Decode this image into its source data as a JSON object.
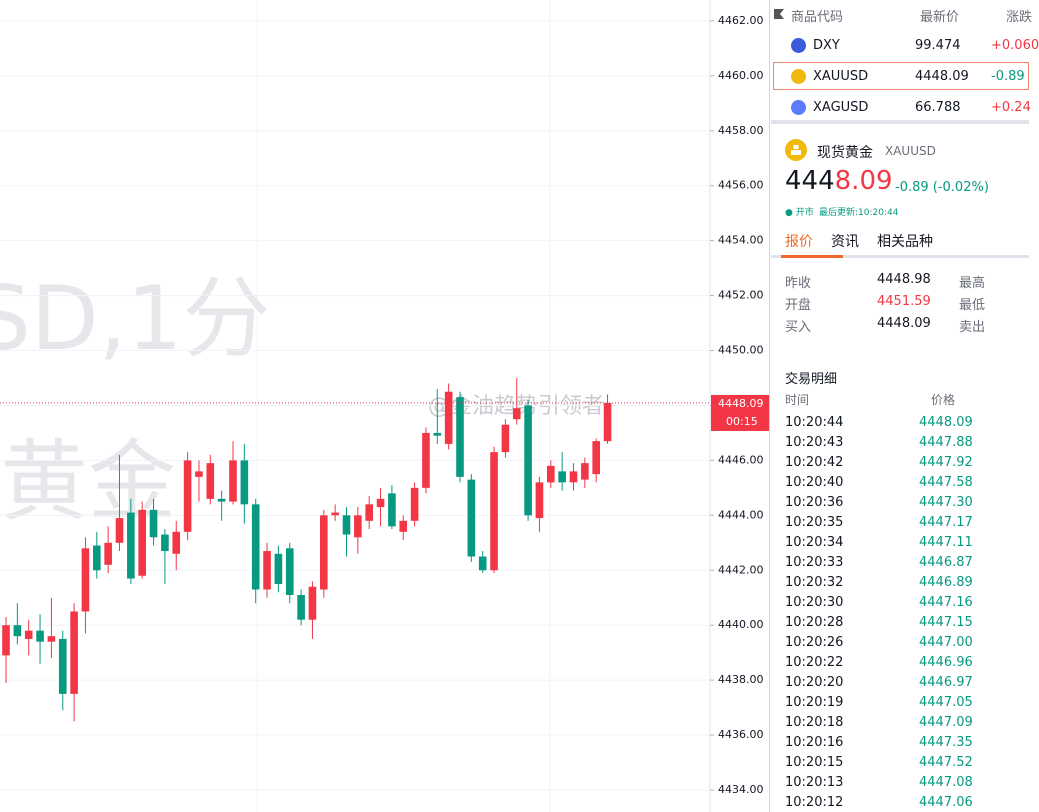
{
  "chart_data": {
    "type": "candlestick",
    "watermark": [
      "SD,1分",
      "黄金"
    ],
    "credit": "@金油趋势引领者",
    "countdown": "00:15",
    "ylim": [
      4433.2,
      4462.76
    ],
    "yticks": [
      {
        "value": 4434,
        "label": "4434.00"
      },
      {
        "value": 4436,
        "label": "4436.00"
      },
      {
        "value": 4438,
        "label": "4438.00"
      },
      {
        "value": 4440,
        "label": "4440.00"
      },
      {
        "value": 4442,
        "label": "4442.00"
      },
      {
        "value": 4444,
        "label": "4444.00"
      },
      {
        "value": 4446,
        "label": "4446.00"
      },
      {
        "value": 4448,
        "label": "4448.00"
      },
      {
        "value": 4450,
        "label": "4450.00"
      },
      {
        "value": 4452,
        "label": "4452.00"
      },
      {
        "value": 4454,
        "label": "4454.00"
      },
      {
        "value": 4456,
        "label": "4456.00"
      },
      {
        "value": 4458,
        "label": "4458.00"
      },
      {
        "value": 4460,
        "label": "4460.00"
      },
      {
        "value": 4462,
        "label": "4462.00"
      }
    ],
    "up_color": "#f23645",
    "down_color": "#089981",
    "series": {
      "open": [
        4438.9,
        4440.0,
        4439.5,
        4439.8,
        4439.4,
        4439.5,
        4437.5,
        4440.5,
        4442.9,
        4442.2,
        4443.0,
        4444.1,
        4441.8,
        4444.2,
        4443.3,
        4442.6,
        4443.4,
        4445.4,
        4444.6,
        4444.6,
        4444.5,
        4446.0,
        4444.4,
        4441.3,
        4442.6,
        4442.8,
        4441.1,
        4440.2,
        4441.3,
        4444.0,
        4444.0,
        4443.2,
        4443.8,
        4444.3,
        4444.8,
        4443.4,
        4443.8,
        4445.0,
        4447.0,
        4446.6,
        4448.3,
        4445.3,
        4442.5,
        4442.0,
        4446.3,
        4447.5,
        4448.0,
        4443.9,
        4445.2,
        4445.6,
        4445.2,
        4445.3,
        4445.5,
        4446.7
      ],
      "high": [
        4440.3,
        4440.8,
        4440.2,
        4440.4,
        4441.0,
        4439.8,
        4440.8,
        4443.2,
        4443.4,
        4443.6,
        4446.2,
        4444.6,
        4444.5,
        4444.6,
        4443.5,
        4443.8,
        4446.3,
        4446.0,
        4446.2,
        4444.9,
        4446.7,
        4446.6,
        4444.6,
        4443.0,
        4442.9,
        4443.0,
        4441.3,
        4441.6,
        4444.2,
        4444.4,
        4444.3,
        4444.3,
        4444.7,
        4445.0,
        4445.1,
        4444.0,
        4445.2,
        4447.2,
        4448.6,
        4448.8,
        4448.5,
        4445.5,
        4442.7,
        4446.5,
        4447.5,
        4449.0,
        4448.2,
        4445.4,
        4446.0,
        4446.3,
        4445.9,
        4446.1,
        4446.8,
        4448.4
      ],
      "low": [
        4437.9,
        4439.3,
        4438.9,
        4438.6,
        4438.8,
        4436.9,
        4436.5,
        4439.7,
        4441.7,
        4441.9,
        4442.7,
        4441.5,
        4441.7,
        4442.9,
        4441.5,
        4442.0,
        4443.1,
        4444.5,
        4444.4,
        4443.8,
        4444.4,
        4443.7,
        4440.8,
        4441.0,
        4441.2,
        4440.8,
        4440.0,
        4439.5,
        4441.0,
        4443.8,
        4442.5,
        4442.6,
        4443.5,
        4443.6,
        4443.5,
        4443.1,
        4443.6,
        4444.8,
        4446.6,
        4446.4,
        4445.2,
        4442.3,
        4441.9,
        4441.9,
        4446.1,
        4447.3,
        4443.8,
        4443.4,
        4445.0,
        4444.9,
        4444.9,
        4445.0,
        4445.2,
        4446.6
      ],
      "close": [
        4440.0,
        4439.6,
        4439.8,
        4439.4,
        4439.6,
        4437.5,
        4440.5,
        4442.8,
        4442.0,
        4443.0,
        4443.9,
        4441.7,
        4444.2,
        4443.2,
        4442.7,
        4443.4,
        4446.0,
        4445.6,
        4445.9,
        4444.5,
        4446.0,
        4444.4,
        4441.3,
        4442.7,
        4441.5,
        4441.1,
        4440.2,
        4441.4,
        4444.0,
        4444.1,
        4443.3,
        4444.0,
        4444.4,
        4444.6,
        4443.6,
        4443.8,
        4445.0,
        4447.0,
        4446.9,
        4448.5,
        4445.4,
        4442.5,
        4442.0,
        4446.3,
        4447.3,
        4447.9,
        4444.0,
        4445.2,
        4445.8,
        4445.2,
        4445.6,
        4445.9,
        4446.7,
        4448.09
      ]
    }
  },
  "watchlist": {
    "header": [
      "商品代码",
      "最新价",
      "涨跌"
    ],
    "rows": [
      [
        "DXY",
        "99.474",
        "+0.060"
      ],
      [
        "XAUUSD",
        "4448.09",
        "-0.89"
      ],
      [
        "XAGUSD",
        "66.788",
        "+0.24"
      ]
    ]
  },
  "detail": {
    "name": "现货黄金",
    "symbol": "XAUUSD",
    "price_main": "444",
    "price_tick": "8.09",
    "change": "-0.89 (-0.02%)",
    "status": "● 开市",
    "updated": "最后更新:10:20:44",
    "tabs": [
      "报价",
      "资讯",
      "相关品种"
    ],
    "stats": [
      [
        "昨收",
        "4448.98",
        "最高"
      ],
      [
        "开盘",
        "4451.59",
        "最低"
      ],
      [
        "买入",
        "4448.09",
        "卖出"
      ]
    ]
  },
  "trades": {
    "title": "交易明细",
    "header": [
      "时间",
      "价格"
    ],
    "rows": [
      [
        "10:20:44",
        "4448.09"
      ],
      [
        "10:20:43",
        "4447.88"
      ],
      [
        "10:20:42",
        "4447.92"
      ],
      [
        "10:20:40",
        "4447.58"
      ],
      [
        "10:20:36",
        "4447.30"
      ],
      [
        "10:20:35",
        "4447.17"
      ],
      [
        "10:20:34",
        "4447.11"
      ],
      [
        "10:20:33",
        "4446.87"
      ],
      [
        "10:20:32",
        "4446.89"
      ],
      [
        "10:20:30",
        "4447.16"
      ],
      [
        "10:20:28",
        "4447.15"
      ],
      [
        "10:20:26",
        "4447.00"
      ],
      [
        "10:20:22",
        "4446.96"
      ],
      [
        "10:20:20",
        "4446.97"
      ],
      [
        "10:20:19",
        "4447.05"
      ],
      [
        "10:20:18",
        "4447.09"
      ],
      [
        "10:20:16",
        "4447.35"
      ],
      [
        "10:20:15",
        "4447.52"
      ],
      [
        "10:20:13",
        "4447.08"
      ],
      [
        "10:20:12",
        "4447.06"
      ]
    ]
  }
}
